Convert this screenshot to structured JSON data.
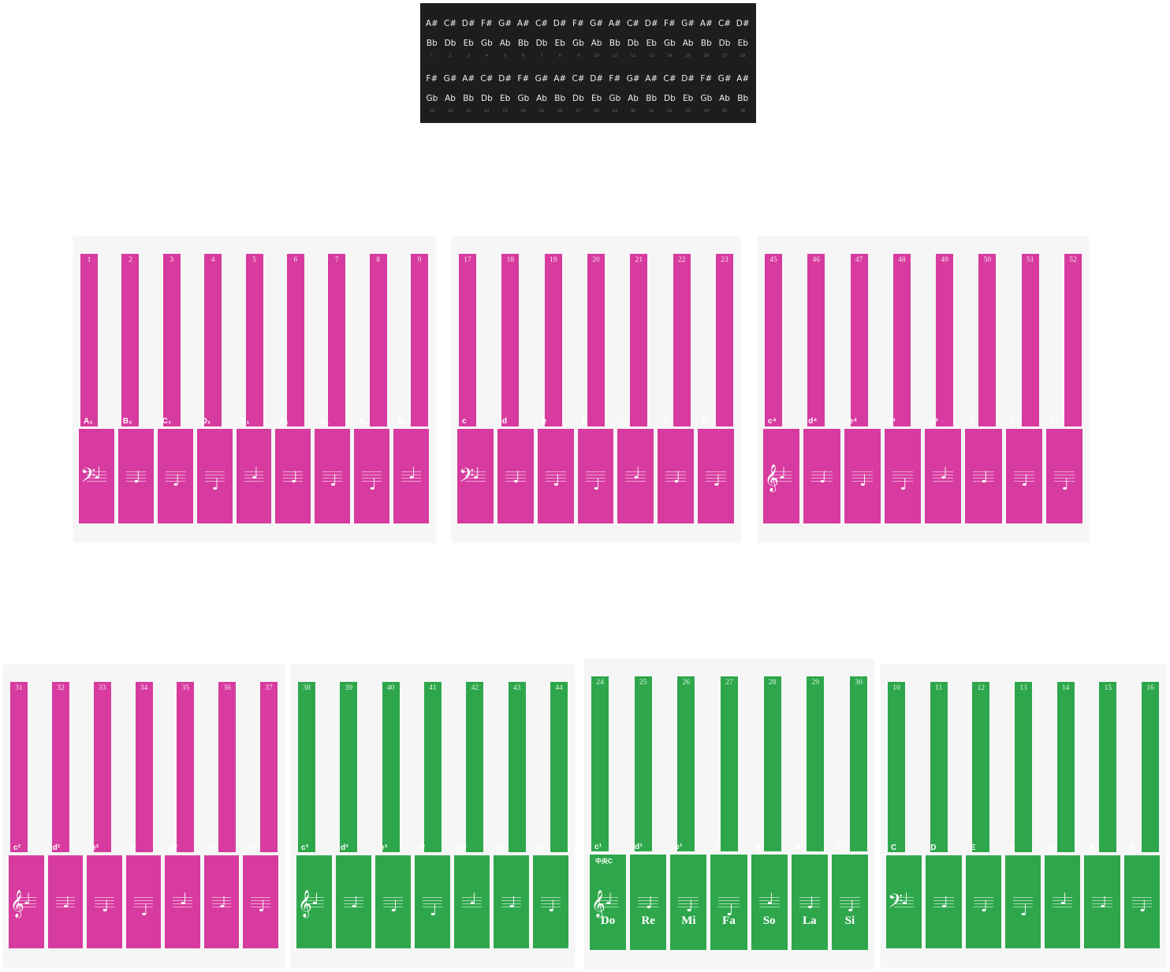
{
  "colors": {
    "magenta": "#d73b9f",
    "green": "#2ea74c",
    "strip": "#1d1d1d"
  },
  "strip": {
    "rows": [
      {
        "sharps": [
          "A#",
          "C#",
          "D#",
          "F#",
          "G#",
          "A#",
          "C#",
          "D#",
          "F#",
          "G#",
          "A#",
          "C#",
          "D#",
          "F#",
          "G#",
          "A#",
          "C#",
          "D#"
        ],
        "flats": [
          "Bb",
          "Db",
          "Eb",
          "Gb",
          "Ab",
          "Bb",
          "Db",
          "Eb",
          "Gb",
          "Ab",
          "Bb",
          "Db",
          "Eb",
          "Gb",
          "Ab",
          "Bb",
          "Db",
          "Eb"
        ],
        "numbers": [
          "1",
          "2",
          "3",
          "4",
          "5",
          "6",
          "7",
          "8",
          "9",
          "10",
          "11",
          "12",
          "13",
          "14",
          "15",
          "16",
          "17",
          "18"
        ]
      },
      {
        "sharps": [
          "F#",
          "G#",
          "A#",
          "C#",
          "D#",
          "F#",
          "G#",
          "A#",
          "C#",
          "D#",
          "F#",
          "G#",
          "A#",
          "C#",
          "D#",
          "F#",
          "G#",
          "A#"
        ],
        "flats": [
          "Gb",
          "Ab",
          "Bb",
          "Db",
          "Eb",
          "Gb",
          "Ab",
          "Bb",
          "Db",
          "Eb",
          "Gb",
          "Ab",
          "Bb",
          "Db",
          "Eb",
          "Gb",
          "Ab",
          "Bb"
        ],
        "numbers": [
          "19",
          "20",
          "21",
          "22",
          "23",
          "24",
          "25",
          "26",
          "27",
          "28",
          "29",
          "30",
          "31",
          "32",
          "33",
          "34",
          "35",
          "36"
        ]
      }
    ]
  },
  "sheets": [
    {
      "id": "sheet-a",
      "color": "magenta",
      "clef": "𝄢",
      "numbers": [
        "1",
        "2",
        "3",
        "4",
        "5",
        "6",
        "7",
        "8",
        "9"
      ],
      "labels": [
        "A₂",
        "B₂",
        "C₁",
        "D₁",
        "E₁",
        "F₁",
        "G₁",
        "A₁",
        "B₁"
      ],
      "solfa": []
    },
    {
      "id": "sheet-b",
      "color": "magenta",
      "clef": "𝄢",
      "numbers": [
        "17",
        "18",
        "19",
        "20",
        "21",
        "22",
        "23"
      ],
      "labels": [
        "c",
        "d",
        "e",
        "f",
        "g",
        "a",
        "b"
      ],
      "solfa": []
    },
    {
      "id": "sheet-c",
      "color": "magenta",
      "clef": "𝄞",
      "numbers": [
        "45",
        "46",
        "47",
        "48",
        "49",
        "50",
        "51",
        "52"
      ],
      "labels": [
        "c⁴",
        "d⁴",
        "e⁴",
        "f⁴",
        "g⁴",
        "a⁴",
        "b⁴",
        "c⁵"
      ],
      "solfa": []
    },
    {
      "id": "sheet-d",
      "color": "magenta",
      "clef": "𝄞",
      "numbers": [
        "31",
        "32",
        "33",
        "34",
        "35",
        "36",
        "37"
      ],
      "labels": [
        "c²",
        "d²",
        "e²",
        "f²",
        "g²",
        "a²",
        "b²"
      ],
      "solfa": []
    },
    {
      "id": "sheet-e",
      "color": "green",
      "clef": "𝄞",
      "numbers": [
        "38",
        "39",
        "40",
        "41",
        "42",
        "43",
        "44"
      ],
      "labels": [
        "c³",
        "d³",
        "e³",
        "f³",
        "g³",
        "a³",
        "b³"
      ],
      "solfa": []
    },
    {
      "id": "sheet-f",
      "color": "green",
      "clef": "𝄞",
      "numbers": [
        "24",
        "25",
        "26",
        "27",
        "28",
        "29",
        "30"
      ],
      "labels": [
        "c¹",
        "d¹",
        "e¹",
        "f¹",
        "g¹",
        "a¹",
        "b¹"
      ],
      "sublabel": "中央C",
      "solfa": [
        "Do",
        "Re",
        "Mi",
        "Fa",
        "So",
        "La",
        "Si"
      ]
    },
    {
      "id": "sheet-g",
      "color": "green",
      "clef": "𝄢",
      "numbers": [
        "10",
        "11",
        "12",
        "13",
        "14",
        "15",
        "16"
      ],
      "labels": [
        "C",
        "D",
        "E",
        "F",
        "G",
        "A",
        "B"
      ],
      "solfa": []
    }
  ]
}
